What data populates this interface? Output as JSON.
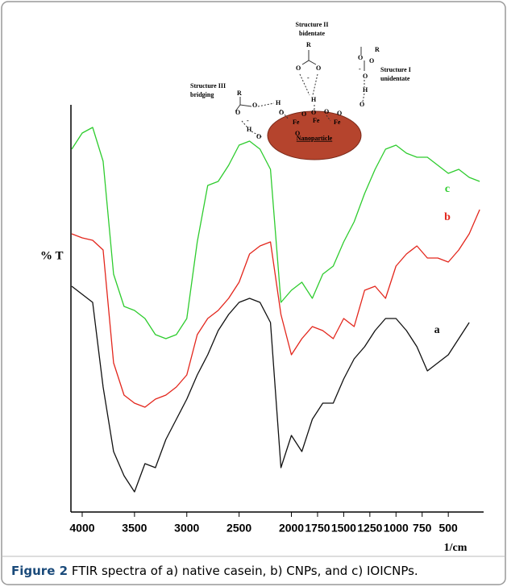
{
  "chart_data": {
    "type": "line",
    "y_label": "% T",
    "x_label": "1/cm",
    "xlim": [
      4100,
      170
    ],
    "ylim": [
      0,
      600
    ],
    "xticks": [
      4000,
      3500,
      3000,
      2500,
      2000,
      1750,
      1500,
      1250,
      1000,
      750,
      500
    ],
    "x": [
      4100,
      4000,
      3900,
      3800,
      3700,
      3600,
      3500,
      3400,
      3300,
      3200,
      3100,
      3000,
      2900,
      2800,
      2700,
      2600,
      2500,
      2400,
      2300,
      2200,
      2100,
      2000,
      1900,
      1800,
      1700,
      1600,
      1500,
      1400,
      1300,
      1200,
      1100,
      1000,
      900,
      800,
      700,
      600,
      500,
      400,
      300,
      200
    ],
    "series": [
      {
        "name": "c",
        "color": "#2ecc2e",
        "values": [
          445,
          465,
          472,
          430,
          290,
          250,
          245,
          235,
          215,
          210,
          215,
          235,
          330,
          400,
          405,
          425,
          450,
          455,
          445,
          420,
          255,
          270,
          280,
          260,
          290,
          300,
          330,
          355,
          390,
          420,
          445,
          450,
          440,
          435,
          435,
          425,
          415,
          420,
          410,
          405
        ]
      },
      {
        "name": "b",
        "color": "#e3261c",
        "values": [
          340,
          335,
          332,
          320,
          180,
          140,
          130,
          125,
          135,
          140,
          150,
          165,
          215,
          235,
          245,
          260,
          280,
          315,
          325,
          330,
          240,
          190,
          210,
          225,
          220,
          210,
          235,
          225,
          270,
          275,
          260,
          300,
          315,
          325,
          310,
          310,
          305,
          320,
          340,
          370
        ]
      },
      {
        "name": "a",
        "color": "#111111",
        "values": [
          275,
          265,
          255,
          150,
          70,
          40,
          20,
          55,
          50,
          85,
          110,
          135,
          165,
          190,
          220,
          240,
          255,
          260,
          255,
          230,
          50,
          90,
          70,
          110,
          130,
          130,
          160,
          185,
          200,
          220,
          235,
          235,
          220,
          200,
          170,
          180,
          190,
          210,
          230,
          null
        ]
      }
    ]
  },
  "inset": {
    "particle": "Nanoparticle",
    "structures": [
      [
        "Structure II",
        "bidentate"
      ],
      [
        "Structure I",
        "unidentate"
      ],
      [
        "Structure III",
        "bridging"
      ]
    ],
    "atoms": [
      "R",
      "O",
      "O",
      "-",
      "H",
      "O",
      "O",
      "-",
      "O",
      "H",
      "O",
      "R",
      "O",
      "O",
      "-",
      "H",
      "O",
      "H",
      "O",
      "Fe",
      "Fe",
      "Fe",
      "O",
      "O",
      "O",
      "R",
      "O",
      "O"
    ]
  },
  "caption": {
    "label": "Figure 2",
    "text": "FTIR spectra of a) native casein, b) CNPs, and c) IOICNPs."
  }
}
